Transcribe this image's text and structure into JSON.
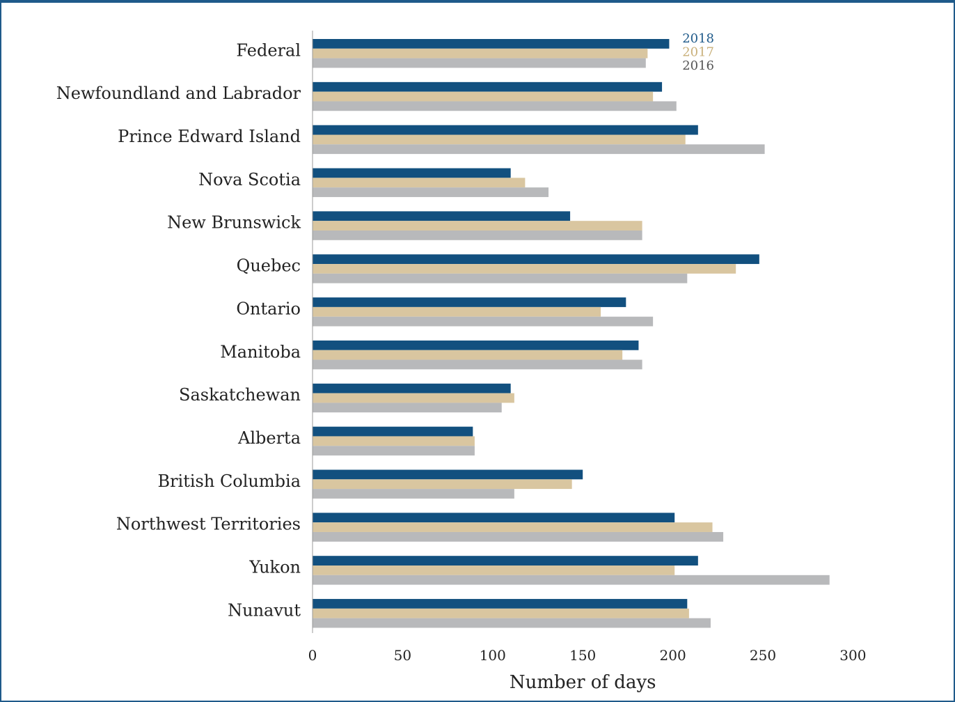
{
  "chart_data": {
    "type": "bar",
    "orientation": "horizontal",
    "title": "",
    "xlabel": "Number of days",
    "ylabel": "",
    "xlim": [
      0,
      300
    ],
    "xticks": [
      0,
      50,
      100,
      150,
      200,
      250,
      300
    ],
    "grid": false,
    "legend_position": "top-right",
    "categories": [
      "Federal",
      "Newfoundland and Labrador",
      "Prince Edward Island",
      "Nova Scotia",
      "New Brunswick",
      "Quebec",
      "Ontario",
      "Manitoba",
      "Saskatchewan",
      "Alberta",
      "British Columbia",
      "Northwest Territories",
      "Yukon",
      "Nunavut"
    ],
    "series": [
      {
        "name": "2018",
        "color": "#12507f",
        "values": [
          198,
          194,
          214,
          110,
          143,
          248,
          174,
          181,
          110,
          89,
          150,
          201,
          214,
          208
        ]
      },
      {
        "name": "2017",
        "color": "#d9c6a0",
        "values": [
          186,
          189,
          207,
          118,
          183,
          235,
          160,
          172,
          112,
          90,
          144,
          222,
          201,
          209
        ]
      },
      {
        "name": "2016",
        "color": "#b8b9bb",
        "values": [
          185,
          202,
          251,
          131,
          183,
          208,
          189,
          183,
          105,
          90,
          112,
          228,
          287,
          221
        ]
      }
    ],
    "legend_colors": {
      "2018": "#1f5a8a",
      "2017": "#c9b07a",
      "2016": "#555555"
    }
  }
}
